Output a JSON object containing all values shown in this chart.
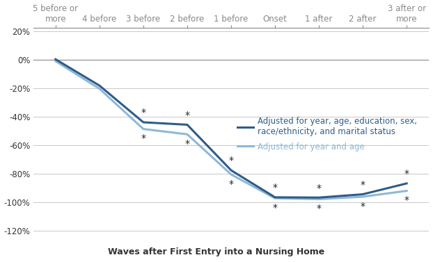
{
  "categories": [
    "5 before or\nmore",
    "4 before",
    "3 before",
    "2 before",
    "1 before",
    "Onset",
    "1 after",
    "2 after",
    "3 after or\nmore"
  ],
  "series1_label": "Adjusted for year, age, education, sex,\nrace/ethnicity, and marital status",
  "series1_values": [
    0.002,
    -0.182,
    -0.439,
    -0.456,
    -0.775,
    -0.964,
    -0.966,
    -0.943,
    -0.867
  ],
  "series1_color": "#2E5C8A",
  "series1_linewidth": 2.2,
  "series2_label": "Adjusted for year and age",
  "series2_values": [
    -0.011,
    -0.204,
    -0.486,
    -0.523,
    -0.804,
    -0.971,
    -0.977,
    -0.96,
    -0.919
  ],
  "series2_color": "#8FB8D4",
  "series2_linewidth": 2.2,
  "xlabel": "Waves after First Entry into a Nursing Home",
  "ylim": [
    -1.28,
    0.22
  ],
  "yticks": [
    0.2,
    0.0,
    -0.2,
    -0.4,
    -0.6,
    -0.8,
    -1.0,
    -1.2
  ],
  "yticklabels": [
    "20%",
    "0%",
    "-20%",
    "-40%",
    "-60%",
    "-80%",
    "-100%",
    "-120%"
  ],
  "background_color": "#FFFFFF",
  "grid_color": "#C8C8C8",
  "axis_fontsize": 8.5,
  "legend_fontsize": 8.5,
  "xlabel_fontsize": 9
}
